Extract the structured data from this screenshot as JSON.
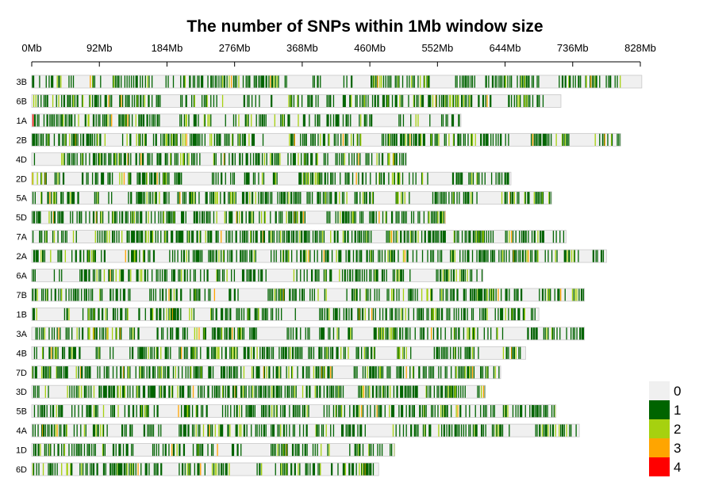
{
  "chart_data": {
    "type": "heatmap",
    "title": "The number of SNPs within 1Mb window size",
    "x_unit": "Mb",
    "x_range": [
      0,
      828
    ],
    "x_ticks": [
      "0Mb",
      "92Mb",
      "184Mb",
      "276Mb",
      "368Mb",
      "460Mb",
      "552Mb",
      "644Mb",
      "736Mb",
      "828Mb"
    ],
    "x_tick_values": [
      0,
      92,
      184,
      276,
      368,
      460,
      552,
      644,
      736,
      828
    ],
    "grid": false,
    "legend_position": "bottom-right",
    "legend": [
      {
        "label": "0",
        "color": "#f0f0f0"
      },
      {
        "label": "1",
        "color": "#006400"
      },
      {
        "label": "2",
        "color": "#a6d10f"
      },
      {
        "label": "3",
        "color": "#ffa500"
      },
      {
        "label": "4",
        "color": "#ff0000"
      }
    ],
    "chromosomes": [
      {
        "name": "3B",
        "length_mb": 830
      },
      {
        "name": "6B",
        "length_mb": 720
      },
      {
        "name": "1A",
        "length_mb": 584
      },
      {
        "name": "2B",
        "length_mb": 801
      },
      {
        "name": "4D",
        "length_mb": 510
      },
      {
        "name": "2D",
        "length_mb": 652
      },
      {
        "name": "5A",
        "length_mb": 707
      },
      {
        "name": "5D",
        "length_mb": 563
      },
      {
        "name": "7A",
        "length_mb": 727
      },
      {
        "name": "2A",
        "length_mb": 782
      },
      {
        "name": "6A",
        "length_mb": 614
      },
      {
        "name": "7B",
        "length_mb": 752
      },
      {
        "name": "1B",
        "length_mb": 690
      },
      {
        "name": "3A",
        "length_mb": 752
      },
      {
        "name": "4B",
        "length_mb": 672
      },
      {
        "name": "7D",
        "length_mb": 638
      },
      {
        "name": "3D",
        "length_mb": 617
      },
      {
        "name": "5B",
        "length_mb": 713
      },
      {
        "name": "4A",
        "length_mb": 745
      },
      {
        "name": "1D",
        "length_mb": 494
      },
      {
        "name": "6D",
        "length_mb": 472
      }
    ]
  }
}
